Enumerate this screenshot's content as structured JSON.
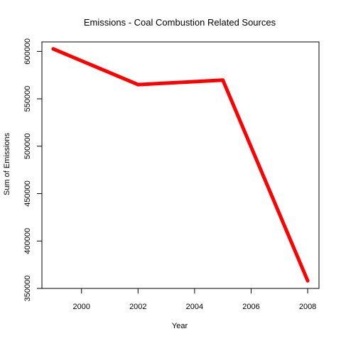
{
  "chart_data": {
    "type": "line",
    "title": "Emissions - Coal Combustion Related Sources",
    "xlabel": "Year",
    "ylabel": "Sum of Emissions",
    "x": [
      1999,
      2002,
      2005,
      2008
    ],
    "series": [
      {
        "values": [
          602624,
          564940,
          569654,
          358084
        ],
        "color": "#ff0000"
      }
    ],
    "xlim": [
      1998.6,
      2008.4
    ],
    "ylim": [
      350000,
      610000
    ],
    "xticks": [
      2000,
      2002,
      2004,
      2006,
      2008
    ],
    "yticks": [
      350000,
      400000,
      450000,
      500000,
      550000,
      600000
    ],
    "xtick_labels": [
      "2000",
      "2002",
      "2004",
      "2006",
      "2008"
    ],
    "ytick_labels": [
      "350000",
      "400000",
      "450000",
      "500000",
      "550000",
      "600000"
    ],
    "grid": false,
    "legend": "none"
  }
}
